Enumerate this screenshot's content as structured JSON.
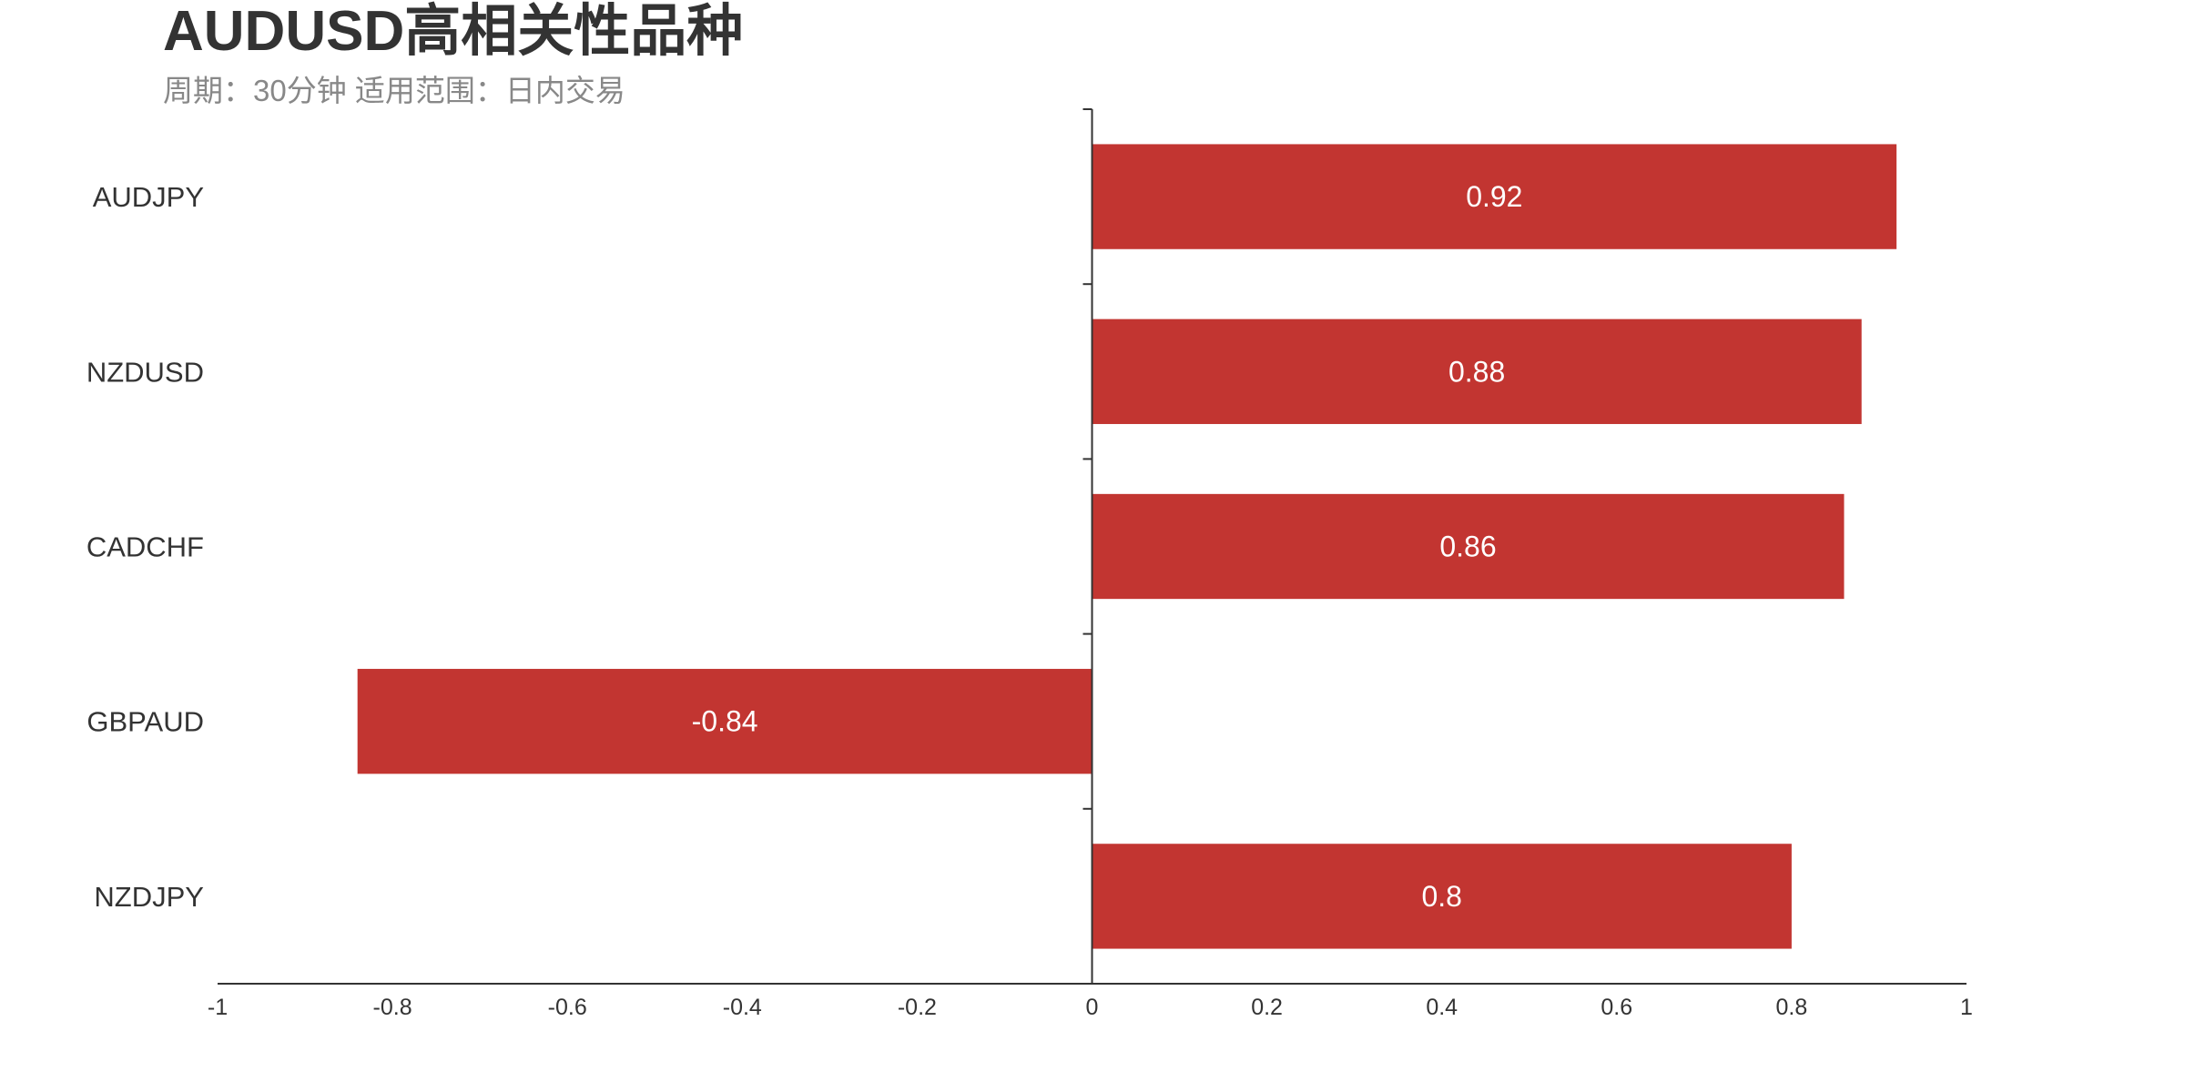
{
  "chart_data": {
    "type": "bar",
    "orientation": "horizontal",
    "title": "AUDUSD高相关性品种",
    "subtitle": "周期：30分钟 适用范围：日内交易",
    "categories": [
      "AUDJPY",
      "NZDUSD",
      "CADCHF",
      "GBPAUD",
      "NZDJPY"
    ],
    "values": [
      0.92,
      0.88,
      0.86,
      -0.84,
      0.8
    ],
    "data_labels": [
      "0.92",
      "0.88",
      "0.86",
      "-0.84",
      "0.8"
    ],
    "xlim": [
      -1,
      1
    ],
    "x_ticks": [
      "-1",
      "-0.8",
      "-0.6",
      "-0.4",
      "-0.2",
      "0",
      "0.2",
      "0.4",
      "0.6",
      "0.8",
      "1"
    ],
    "grid": false,
    "bar_color": "#c23531"
  }
}
